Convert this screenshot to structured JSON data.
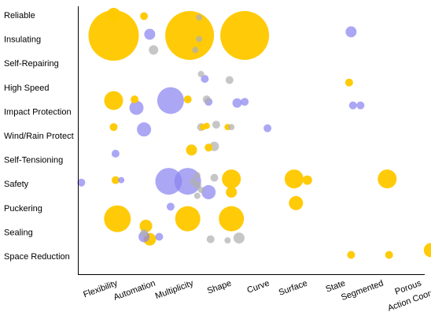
{
  "chart_data": {
    "type": "scatter",
    "title": "",
    "xlabel": "",
    "ylabel": "",
    "grid": false,
    "legend": "none",
    "colors": {
      "gold": "#FFC800",
      "blue": "#8A85F0",
      "gray": "#B0B0B0",
      "axis": "#000000",
      "background": "#FFFFFF"
    },
    "x_categories": [
      "Flexibility",
      "Automation",
      "Multiplicity",
      "Shape",
      "Curve",
      "Surface",
      "State",
      "Segmented",
      "Porous",
      "Action Coordination"
    ],
    "y_categories": [
      "Reliable",
      "Insulating",
      "Self-Repairing",
      "High Speed",
      "Impact Protection",
      "Wind/Rain Protect",
      "Self-Tensioning",
      "Safety",
      "Puckering",
      "Sealing",
      "Space Reduction"
    ],
    "bubble_size_unit": "relative",
    "series": [
      {
        "color": "gold",
        "points": [
          {
            "x": 0.3,
            "y": 0.0,
            "size": 9
          },
          {
            "x": 1.1,
            "y": 0.05,
            "size": 5
          },
          {
            "x": 0.3,
            "y": 0.85,
            "size": 32
          },
          {
            "x": 2.3,
            "y": 0.85,
            "size": 31
          },
          {
            "x": 3.75,
            "y": 0.85,
            "size": 31
          },
          {
            "x": 6.5,
            "y": 2.8,
            "size": 5
          },
          {
            "x": 0.3,
            "y": 3.55,
            "size": 12
          },
          {
            "x": 0.85,
            "y": 3.5,
            "size": 5
          },
          {
            "x": 2.25,
            "y": 3.5,
            "size": 5
          },
          {
            "x": 0.3,
            "y": 4.65,
            "size": 5
          },
          {
            "x": 2.65,
            "y": 4.65,
            "size": 4
          },
          {
            "x": 2.75,
            "y": 4.6,
            "size": 4
          },
          {
            "x": 3.3,
            "y": 4.65,
            "size": 4
          },
          {
            "x": 2.35,
            "y": 5.6,
            "size": 7
          },
          {
            "x": 2.8,
            "y": 5.5,
            "size": 5
          },
          {
            "x": 9.6,
            "y": 5.85,
            "size": 7
          },
          {
            "x": 0.35,
            "y": 6.85,
            "size": 5
          },
          {
            "x": 3.4,
            "y": 6.8,
            "size": 12
          },
          {
            "x": 5.05,
            "y": 6.8,
            "size": 12
          },
          {
            "x": 5.4,
            "y": 6.85,
            "size": 6
          },
          {
            "x": 7.5,
            "y": 6.8,
            "size": 12
          },
          {
            "x": 3.4,
            "y": 7.35,
            "size": 7
          },
          {
            "x": 5.1,
            "y": 7.8,
            "size": 9
          },
          {
            "x": 0.4,
            "y": 8.45,
            "size": 17
          },
          {
            "x": 1.15,
            "y": 8.75,
            "size": 8
          },
          {
            "x": 2.25,
            "y": 8.45,
            "size": 16
          },
          {
            "x": 3.4,
            "y": 8.45,
            "size": 16
          },
          {
            "x": 1.25,
            "y": 9.3,
            "size": 8
          },
          {
            "x": 6.55,
            "y": 9.95,
            "size": 5
          },
          {
            "x": 7.55,
            "y": 9.95,
            "size": 5
          },
          {
            "x": 8.65,
            "y": 9.75,
            "size": 9
          }
        ]
      },
      {
        "color": "blue",
        "points": [
          {
            "x": 6.55,
            "y": 0.7,
            "size": 7
          },
          {
            "x": 1.25,
            "y": 0.8,
            "size": 7
          },
          {
            "x": 2.7,
            "y": 2.65,
            "size": 5
          },
          {
            "x": 0.9,
            "y": 3.85,
            "size": 9
          },
          {
            "x": 1.8,
            "y": 3.55,
            "size": 17
          },
          {
            "x": 2.8,
            "y": 3.6,
            "size": 5
          },
          {
            "x": 3.55,
            "y": 3.65,
            "size": 6
          },
          {
            "x": 3.75,
            "y": 3.6,
            "size": 5
          },
          {
            "x": 6.6,
            "y": 3.75,
            "size": 5
          },
          {
            "x": 6.8,
            "y": 3.75,
            "size": 5
          },
          {
            "x": 1.1,
            "y": 4.75,
            "size": 9
          },
          {
            "x": 4.35,
            "y": 4.7,
            "size": 5
          },
          {
            "x": 9.45,
            "y": 4.7,
            "size": 5
          },
          {
            "x": 0.35,
            "y": 5.75,
            "size": 5
          },
          {
            "x": -0.55,
            "y": 6.95,
            "size": 5
          },
          {
            "x": 0.5,
            "y": 6.85,
            "size": 4
          },
          {
            "x": 1.75,
            "y": 6.9,
            "size": 17
          },
          {
            "x": 2.25,
            "y": 6.9,
            "size": 17
          },
          {
            "x": 2.8,
            "y": 7.35,
            "size": 9
          },
          {
            "x": 1.8,
            "y": 7.95,
            "size": 5
          },
          {
            "x": 1.1,
            "y": 9.2,
            "size": 7
          },
          {
            "x": 1.5,
            "y": 9.2,
            "size": 5
          }
        ]
      },
      {
        "color": "gray",
        "points": [
          {
            "x": 2.55,
            "y": 0.1,
            "size": 4
          },
          {
            "x": 2.55,
            "y": 1.0,
            "size": 4
          },
          {
            "x": 2.45,
            "y": 1.45,
            "size": 4
          },
          {
            "x": 1.35,
            "y": 1.45,
            "size": 6
          },
          {
            "x": 2.6,
            "y": 2.45,
            "size": 4
          },
          {
            "x": 3.35,
            "y": 2.7,
            "size": 5
          },
          {
            "x": 2.75,
            "y": 3.5,
            "size": 5
          },
          {
            "x": 2.6,
            "y": 4.65,
            "size": 5
          },
          {
            "x": 3.0,
            "y": 4.55,
            "size": 5
          },
          {
            "x": 3.4,
            "y": 4.65,
            "size": 4
          },
          {
            "x": 2.95,
            "y": 5.45,
            "size": 6
          },
          {
            "x": 2.5,
            "y": 6.65,
            "size": 4
          },
          {
            "x": 2.4,
            "y": 6.9,
            "size": 5
          },
          {
            "x": 2.5,
            "y": 7.05,
            "size": 5
          },
          {
            "x": 2.6,
            "y": 7.25,
            "size": 4
          },
          {
            "x": 2.5,
            "y": 7.5,
            "size": 4
          },
          {
            "x": 2.95,
            "y": 6.75,
            "size": 5
          },
          {
            "x": 3.6,
            "y": 9.25,
            "size": 7
          },
          {
            "x": 3.3,
            "y": 9.35,
            "size": 4
          },
          {
            "x": 2.85,
            "y": 9.3,
            "size": 5
          },
          {
            "x": 1.1,
            "y": 9.05,
            "size": 5
          }
        ]
      }
    ]
  }
}
